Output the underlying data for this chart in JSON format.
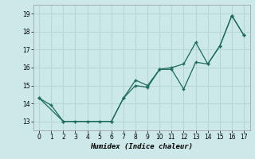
{
  "xlabel": "Humidex (Indice chaleur)",
  "xlim": [
    -0.5,
    17.5
  ],
  "ylim": [
    12.5,
    19.5
  ],
  "yticks": [
    13,
    14,
    15,
    16,
    17,
    18,
    19
  ],
  "xticks": [
    0,
    1,
    2,
    3,
    4,
    5,
    6,
    7,
    8,
    9,
    10,
    11,
    12,
    13,
    14,
    15,
    16,
    17
  ],
  "bg_color": "#cce8e8",
  "grid_color": "#b8d8d8",
  "line_color": "#1a6b5a",
  "line1_x": [
    0,
    1,
    2,
    3,
    4,
    5,
    6,
    7,
    8,
    9,
    10,
    11,
    12,
    13,
    14,
    15,
    16,
    17
  ],
  "line1_y": [
    14.3,
    13.9,
    13.0,
    13.0,
    13.0,
    13.0,
    13.0,
    14.3,
    15.3,
    15.0,
    15.9,
    15.9,
    14.8,
    16.3,
    16.2,
    17.2,
    18.9,
    17.8
  ],
  "line2_x": [
    0,
    2,
    6,
    7,
    8,
    9,
    10,
    11,
    12,
    13,
    14,
    15,
    16,
    17
  ],
  "line2_y": [
    14.3,
    13.0,
    13.0,
    14.3,
    15.0,
    14.9,
    15.9,
    16.0,
    16.2,
    17.4,
    16.2,
    17.2,
    18.9,
    17.8
  ],
  "marker": "+"
}
